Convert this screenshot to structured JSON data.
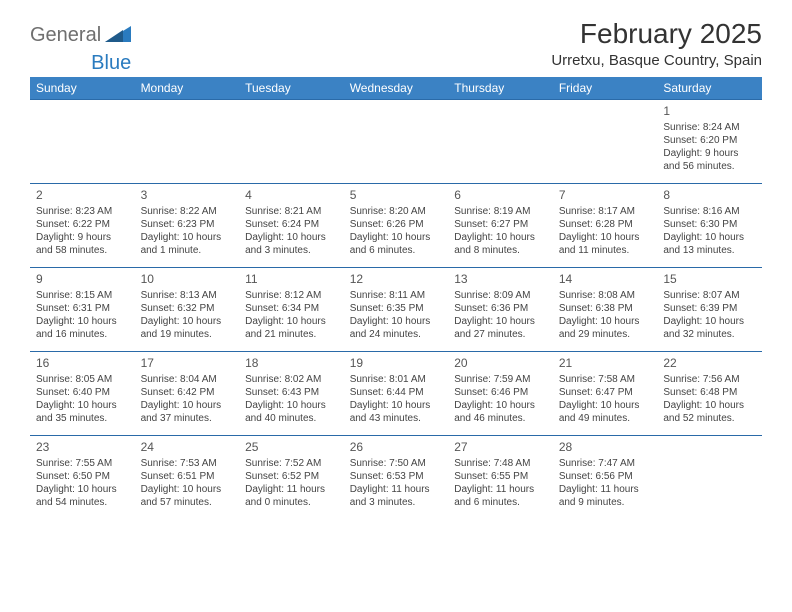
{
  "logo": {
    "text1": "General",
    "text2": "Blue"
  },
  "title": "February 2025",
  "subtitle": "Urretxu, Basque Country, Spain",
  "colors": {
    "header_bg": "#3b82c4",
    "header_text": "#ffffff",
    "border": "#2a6aa8",
    "logo_gray": "#6f6f6f",
    "logo_blue": "#2a7bbf",
    "text": "#333333"
  },
  "day_headers": [
    "Sunday",
    "Monday",
    "Tuesday",
    "Wednesday",
    "Thursday",
    "Friday",
    "Saturday"
  ],
  "weeks": [
    [
      null,
      null,
      null,
      null,
      null,
      null,
      {
        "n": "1",
        "sr": "Sunrise: 8:24 AM",
        "ss": "Sunset: 6:20 PM",
        "dl1": "Daylight: 9 hours",
        "dl2": "and 56 minutes."
      }
    ],
    [
      {
        "n": "2",
        "sr": "Sunrise: 8:23 AM",
        "ss": "Sunset: 6:22 PM",
        "dl1": "Daylight: 9 hours",
        "dl2": "and 58 minutes."
      },
      {
        "n": "3",
        "sr": "Sunrise: 8:22 AM",
        "ss": "Sunset: 6:23 PM",
        "dl1": "Daylight: 10 hours",
        "dl2": "and 1 minute."
      },
      {
        "n": "4",
        "sr": "Sunrise: 8:21 AM",
        "ss": "Sunset: 6:24 PM",
        "dl1": "Daylight: 10 hours",
        "dl2": "and 3 minutes."
      },
      {
        "n": "5",
        "sr": "Sunrise: 8:20 AM",
        "ss": "Sunset: 6:26 PM",
        "dl1": "Daylight: 10 hours",
        "dl2": "and 6 minutes."
      },
      {
        "n": "6",
        "sr": "Sunrise: 8:19 AM",
        "ss": "Sunset: 6:27 PM",
        "dl1": "Daylight: 10 hours",
        "dl2": "and 8 minutes."
      },
      {
        "n": "7",
        "sr": "Sunrise: 8:17 AM",
        "ss": "Sunset: 6:28 PM",
        "dl1": "Daylight: 10 hours",
        "dl2": "and 11 minutes."
      },
      {
        "n": "8",
        "sr": "Sunrise: 8:16 AM",
        "ss": "Sunset: 6:30 PM",
        "dl1": "Daylight: 10 hours",
        "dl2": "and 13 minutes."
      }
    ],
    [
      {
        "n": "9",
        "sr": "Sunrise: 8:15 AM",
        "ss": "Sunset: 6:31 PM",
        "dl1": "Daylight: 10 hours",
        "dl2": "and 16 minutes."
      },
      {
        "n": "10",
        "sr": "Sunrise: 8:13 AM",
        "ss": "Sunset: 6:32 PM",
        "dl1": "Daylight: 10 hours",
        "dl2": "and 19 minutes."
      },
      {
        "n": "11",
        "sr": "Sunrise: 8:12 AM",
        "ss": "Sunset: 6:34 PM",
        "dl1": "Daylight: 10 hours",
        "dl2": "and 21 minutes."
      },
      {
        "n": "12",
        "sr": "Sunrise: 8:11 AM",
        "ss": "Sunset: 6:35 PM",
        "dl1": "Daylight: 10 hours",
        "dl2": "and 24 minutes."
      },
      {
        "n": "13",
        "sr": "Sunrise: 8:09 AM",
        "ss": "Sunset: 6:36 PM",
        "dl1": "Daylight: 10 hours",
        "dl2": "and 27 minutes."
      },
      {
        "n": "14",
        "sr": "Sunrise: 8:08 AM",
        "ss": "Sunset: 6:38 PM",
        "dl1": "Daylight: 10 hours",
        "dl2": "and 29 minutes."
      },
      {
        "n": "15",
        "sr": "Sunrise: 8:07 AM",
        "ss": "Sunset: 6:39 PM",
        "dl1": "Daylight: 10 hours",
        "dl2": "and 32 minutes."
      }
    ],
    [
      {
        "n": "16",
        "sr": "Sunrise: 8:05 AM",
        "ss": "Sunset: 6:40 PM",
        "dl1": "Daylight: 10 hours",
        "dl2": "and 35 minutes."
      },
      {
        "n": "17",
        "sr": "Sunrise: 8:04 AM",
        "ss": "Sunset: 6:42 PM",
        "dl1": "Daylight: 10 hours",
        "dl2": "and 37 minutes."
      },
      {
        "n": "18",
        "sr": "Sunrise: 8:02 AM",
        "ss": "Sunset: 6:43 PM",
        "dl1": "Daylight: 10 hours",
        "dl2": "and 40 minutes."
      },
      {
        "n": "19",
        "sr": "Sunrise: 8:01 AM",
        "ss": "Sunset: 6:44 PM",
        "dl1": "Daylight: 10 hours",
        "dl2": "and 43 minutes."
      },
      {
        "n": "20",
        "sr": "Sunrise: 7:59 AM",
        "ss": "Sunset: 6:46 PM",
        "dl1": "Daylight: 10 hours",
        "dl2": "and 46 minutes."
      },
      {
        "n": "21",
        "sr": "Sunrise: 7:58 AM",
        "ss": "Sunset: 6:47 PM",
        "dl1": "Daylight: 10 hours",
        "dl2": "and 49 minutes."
      },
      {
        "n": "22",
        "sr": "Sunrise: 7:56 AM",
        "ss": "Sunset: 6:48 PM",
        "dl1": "Daylight: 10 hours",
        "dl2": "and 52 minutes."
      }
    ],
    [
      {
        "n": "23",
        "sr": "Sunrise: 7:55 AM",
        "ss": "Sunset: 6:50 PM",
        "dl1": "Daylight: 10 hours",
        "dl2": "and 54 minutes."
      },
      {
        "n": "24",
        "sr": "Sunrise: 7:53 AM",
        "ss": "Sunset: 6:51 PM",
        "dl1": "Daylight: 10 hours",
        "dl2": "and 57 minutes."
      },
      {
        "n": "25",
        "sr": "Sunrise: 7:52 AM",
        "ss": "Sunset: 6:52 PM",
        "dl1": "Daylight: 11 hours",
        "dl2": "and 0 minutes."
      },
      {
        "n": "26",
        "sr": "Sunrise: 7:50 AM",
        "ss": "Sunset: 6:53 PM",
        "dl1": "Daylight: 11 hours",
        "dl2": "and 3 minutes."
      },
      {
        "n": "27",
        "sr": "Sunrise: 7:48 AM",
        "ss": "Sunset: 6:55 PM",
        "dl1": "Daylight: 11 hours",
        "dl2": "and 6 minutes."
      },
      {
        "n": "28",
        "sr": "Sunrise: 7:47 AM",
        "ss": "Sunset: 6:56 PM",
        "dl1": "Daylight: 11 hours",
        "dl2": "and 9 minutes."
      },
      null
    ]
  ]
}
